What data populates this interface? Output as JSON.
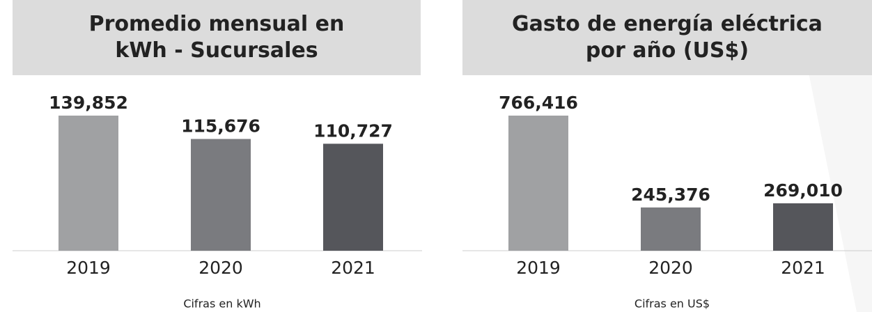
{
  "chart_data": [
    {
      "type": "bar",
      "title": "Promedio mensual en kWh - Sucursales",
      "categories": [
        "2019",
        "2020",
        "2021"
      ],
      "values": [
        139852,
        115676,
        110727
      ],
      "value_labels": [
        "139,852",
        "115,676",
        "110,727"
      ],
      "colors": [
        "#a0a1a3",
        "#7a7b7f",
        "#55565b"
      ],
      "caption": "Cifras en kWh"
    },
    {
      "type": "bar",
      "title": "Gasto de energía eléctrica por año (US$)",
      "categories": [
        "2019",
        "2020",
        "2021"
      ],
      "values": [
        766416,
        245376,
        269010
      ],
      "value_labels": [
        "766,416",
        "245,376",
        "269,010"
      ],
      "colors": [
        "#a0a1a3",
        "#7a7b7f",
        "#55565b"
      ],
      "caption": "Cifras en US$"
    }
  ]
}
